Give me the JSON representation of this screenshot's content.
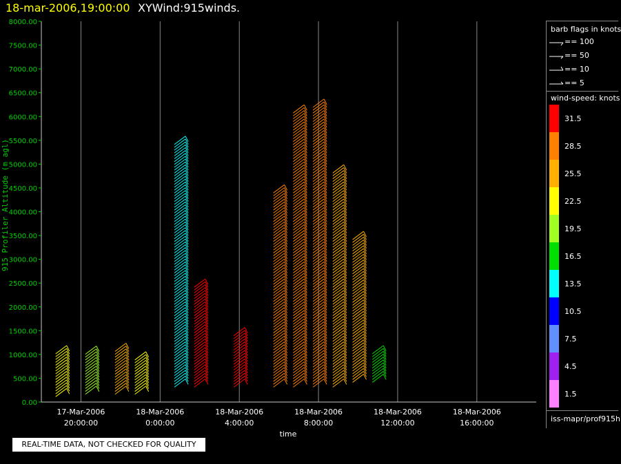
{
  "header": {
    "date": "18-mar-2006,19:00:00",
    "name": "XYWind:915winds."
  },
  "notice": "REAL-TIME DATA, NOT CHECKED FOR QUALITY",
  "legend": {
    "flags_title": "barb flags in knots",
    "flags": [
      "== 100",
      "== 50",
      "== 10",
      "== 5"
    ],
    "speed_title": "wind-speed: knots",
    "speed_bins": [
      {
        "label": "31.5",
        "color": "#ff0000"
      },
      {
        "label": "28.5",
        "color": "#ff8000"
      },
      {
        "label": "25.5",
        "color": "#ffb000"
      },
      {
        "label": "22.5",
        "color": "#ffff00"
      },
      {
        "label": "19.5",
        "color": "#a0ff20"
      },
      {
        "label": "16.5",
        "color": "#00e000"
      },
      {
        "label": "13.5",
        "color": "#00ffff"
      },
      {
        "label": "10.5",
        "color": "#0000ff"
      },
      {
        "label": "7.5",
        "color": "#6090ff"
      },
      {
        "label": "4.5",
        "color": "#a020f0"
      },
      {
        "label": "1.5",
        "color": "#ff80ff"
      }
    ],
    "footer": "iss-mapr/prof915h"
  },
  "chart_data": {
    "type": "scatter",
    "xlabel": "time",
    "ylabel": "915 Profiler Altitude (m agl)",
    "ylim": [
      0,
      8000
    ],
    "xlim": [
      "2006-03-17 18:00",
      "2006-03-18 19:00"
    ],
    "y_ticks": [
      "0.00",
      "500.00",
      "1000.00",
      "1500.00",
      "2000.00",
      "2500.00",
      "3000.00",
      "3500.00",
      "4000.00",
      "4500.00",
      "5000.00",
      "5500.00",
      "6000.00",
      "6500.00",
      "7000.00",
      "7500.00",
      "8000.00"
    ],
    "x_ticks": [
      {
        "time": "2006-03-17 20:00",
        "label1": "17-Mar-2006",
        "label2": "20:00:00"
      },
      {
        "time": "2006-03-18 00:00",
        "label1": "18-Mar-2006",
        "label2": "0:00:00"
      },
      {
        "time": "2006-03-18 04:00",
        "label1": "18-Mar-2006",
        "label2": "4:00:00"
      },
      {
        "time": "2006-03-18 08:00",
        "label1": "18-Mar-2006",
        "label2": "8:00:00"
      },
      {
        "time": "2006-03-18 12:00",
        "label1": "18-Mar-2006",
        "label2": "12:00:00"
      },
      {
        "time": "2006-03-18 16:00",
        "label1": "18-Mar-2006",
        "label2": "16:00:00"
      }
    ],
    "grid": "vertical",
    "series": [
      {
        "x": "2006-03-17 19:00",
        "y": [
          200,
          1100
        ],
        "speed": 22.5
      },
      {
        "x": "2006-03-17 20:30",
        "y": [
          250,
          1100
        ],
        "speed": 19.5
      },
      {
        "x": "2006-03-17 22:00",
        "y": [
          250,
          1150
        ],
        "speed": 25.5
      },
      {
        "x": "2006-03-17 23:00",
        "y": [
          250,
          1000
        ],
        "speed": 22.5
      },
      {
        "x": "2006-03-18 01:00",
        "y": [
          400,
          5500
        ],
        "speed": 13.5
      },
      {
        "x": "2006-03-18 02:00",
        "y": [
          400,
          2500
        ],
        "speed": 31.5
      },
      {
        "x": "2006-03-18 04:00",
        "y": [
          400,
          1500
        ],
        "speed": 31.5
      },
      {
        "x": "2006-03-18 06:00",
        "y": [
          400,
          4500
        ],
        "speed": 28.5
      },
      {
        "x": "2006-03-18 07:00",
        "y": [
          400,
          6200
        ],
        "speed": 28.5
      },
      {
        "x": "2006-03-18 08:00",
        "y": [
          400,
          6300
        ],
        "speed": 28.5
      },
      {
        "x": "2006-03-18 09:00",
        "y": [
          400,
          4900
        ],
        "speed": 25.5
      },
      {
        "x": "2006-03-18 10:00",
        "y": [
          500,
          3500
        ],
        "speed": 25.5
      },
      {
        "x": "2006-03-18 11:00",
        "y": [
          500,
          1100
        ],
        "speed": 16.5
      }
    ]
  }
}
